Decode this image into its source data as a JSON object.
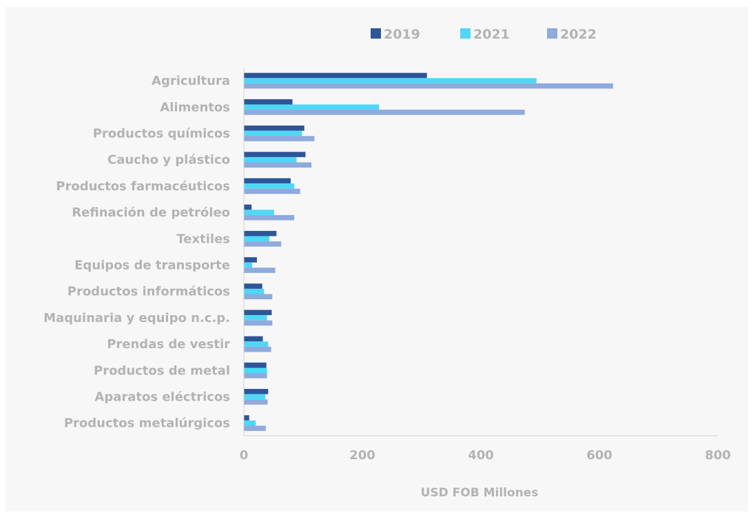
{
  "chart_data": {
    "type": "bar",
    "orientation": "horizontal",
    "title": "",
    "xlabel": "USD FOB Millones",
    "ylabel": "",
    "xlim": [
      0,
      800
    ],
    "xticks": [
      "0",
      "200",
      "400",
      "600",
      "800"
    ],
    "grid": false,
    "legend_position": "top",
    "categories": [
      "Agricultura",
      "Alimentos",
      "Productos químicos",
      "Caucho y plástico",
      "Productos farmacéuticos",
      "Refinación de petróleo",
      "Textiles",
      "Equipos de transporte",
      "Productos informáticos",
      "Maquinaria y equipo n.c.p.",
      "Prendas de vestir",
      "Productos de metal",
      "Aparatos eléctricos",
      "Productos metalúrgicos"
    ],
    "series": [
      {
        "name": "2019",
        "color": "#2e5597",
        "values": [
          309,
          82,
          102,
          104,
          79,
          13,
          55,
          22,
          31,
          47,
          32,
          38,
          41,
          9
        ]
      },
      {
        "name": "2021",
        "color": "#4fd8f5",
        "values": [
          494,
          228,
          98,
          89,
          85,
          51,
          43,
          14,
          34,
          39,
          41,
          39,
          36,
          20
        ]
      },
      {
        "name": "2022",
        "color": "#8faadc",
        "values": [
          623,
          474,
          119,
          114,
          95,
          85,
          63,
          53,
          48,
          48,
          46,
          39,
          40,
          37
        ]
      }
    ]
  }
}
